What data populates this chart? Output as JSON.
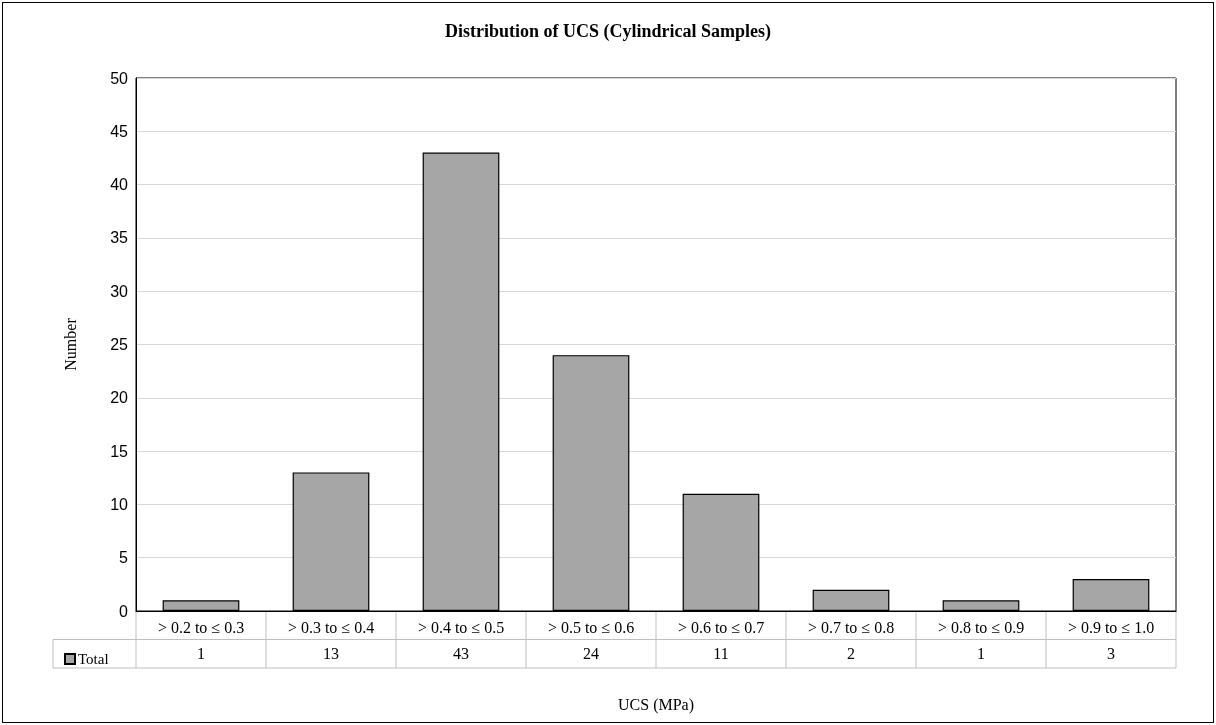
{
  "chart_data": {
    "type": "bar",
    "title": "Distribution of UCS (Cylindrical Samples)",
    "xlabel": "UCS (MPa)",
    "ylabel": "Number",
    "categories": [
      "> 0.2 to ≤ 0.3",
      "> 0.3 to ≤ 0.4",
      "> 0.4 to ≤ 0.5",
      "> 0.5 to ≤ 0.6",
      "> 0.6 to ≤ 0.7",
      "> 0.7 to ≤ 0.8",
      "> 0.8 to ≤ 0.9",
      "> 0.9 to ≤ 1.0"
    ],
    "series": [
      {
        "name": "Total",
        "color": "#a6a6a6",
        "values": [
          1,
          13,
          43,
          24,
          11,
          2,
          1,
          3
        ]
      }
    ],
    "ylim": [
      0,
      50
    ],
    "yticks": [
      0,
      5,
      10,
      15,
      20,
      25,
      30,
      35,
      40,
      45,
      50
    ],
    "grid": "y",
    "legend": "bottom left",
    "data_labels": true
  }
}
